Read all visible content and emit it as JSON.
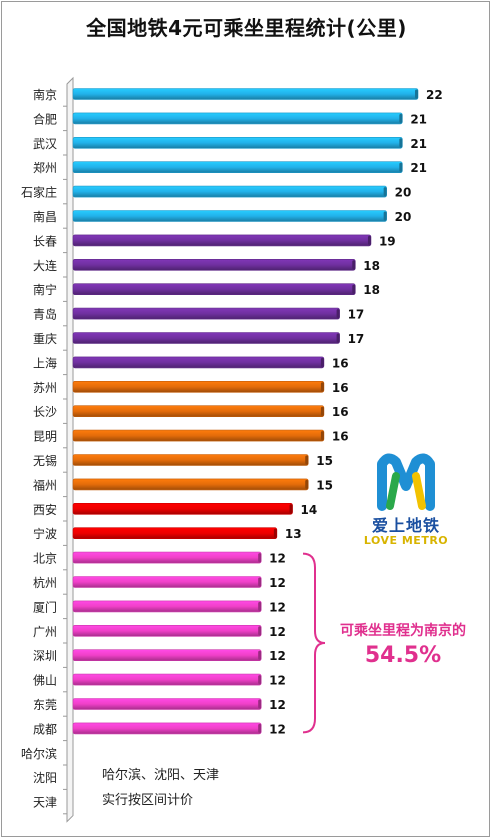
{
  "chart_data": {
    "type": "bar",
    "orientation": "horizontal",
    "title": "全国地铁4元可乘坐里程统计(公里)",
    "categories": [
      "南京",
      "合肥",
      "武汉",
      "郑州",
      "石家庄",
      "南昌",
      "长春",
      "大连",
      "南宁",
      "青岛",
      "重庆",
      "上海",
      "苏州",
      "长沙",
      "昆明",
      "无锡",
      "福州",
      "西安",
      "宁波",
      "北京",
      "杭州",
      "厦门",
      "广州",
      "深圳",
      "佛山",
      "东莞",
      "成都",
      "哈尔滨",
      "沈阳",
      "天津"
    ],
    "values": [
      22,
      21,
      21,
      21,
      20,
      20,
      19,
      18,
      18,
      17,
      17,
      16,
      16,
      16,
      16,
      15,
      15,
      14,
      13,
      12,
      12,
      12,
      12,
      12,
      12,
      12,
      12,
      null,
      null,
      null
    ],
    "bar_colors": {
      "blue": "#22b2ea",
      "purple": "#7030a0",
      "orange": "#e46c0a",
      "red": "#ee0000",
      "pink": "#f040c8"
    },
    "color_groups": [
      "blue",
      "blue",
      "blue",
      "blue",
      "blue",
      "blue",
      "purple",
      "purple",
      "purple",
      "purple",
      "purple",
      "purple",
      "orange",
      "orange",
      "orange",
      "orange",
      "orange",
      "red",
      "red",
      "pink",
      "pink",
      "pink",
      "pink",
      "pink",
      "pink",
      "pink",
      "pink",
      null,
      null,
      null
    ],
    "xlim": [
      0,
      22
    ],
    "grid": false,
    "annotations": {
      "bracket_text": "可乘坐里程为南京的",
      "bracket_value": "54.5%",
      "footnote_line1": "哈尔滨、沈阳、天津",
      "footnote_line2": "实行按区间计价"
    }
  },
  "logo": {
    "text_cn": "爱上地铁",
    "text_en": "LOVE METRO"
  }
}
